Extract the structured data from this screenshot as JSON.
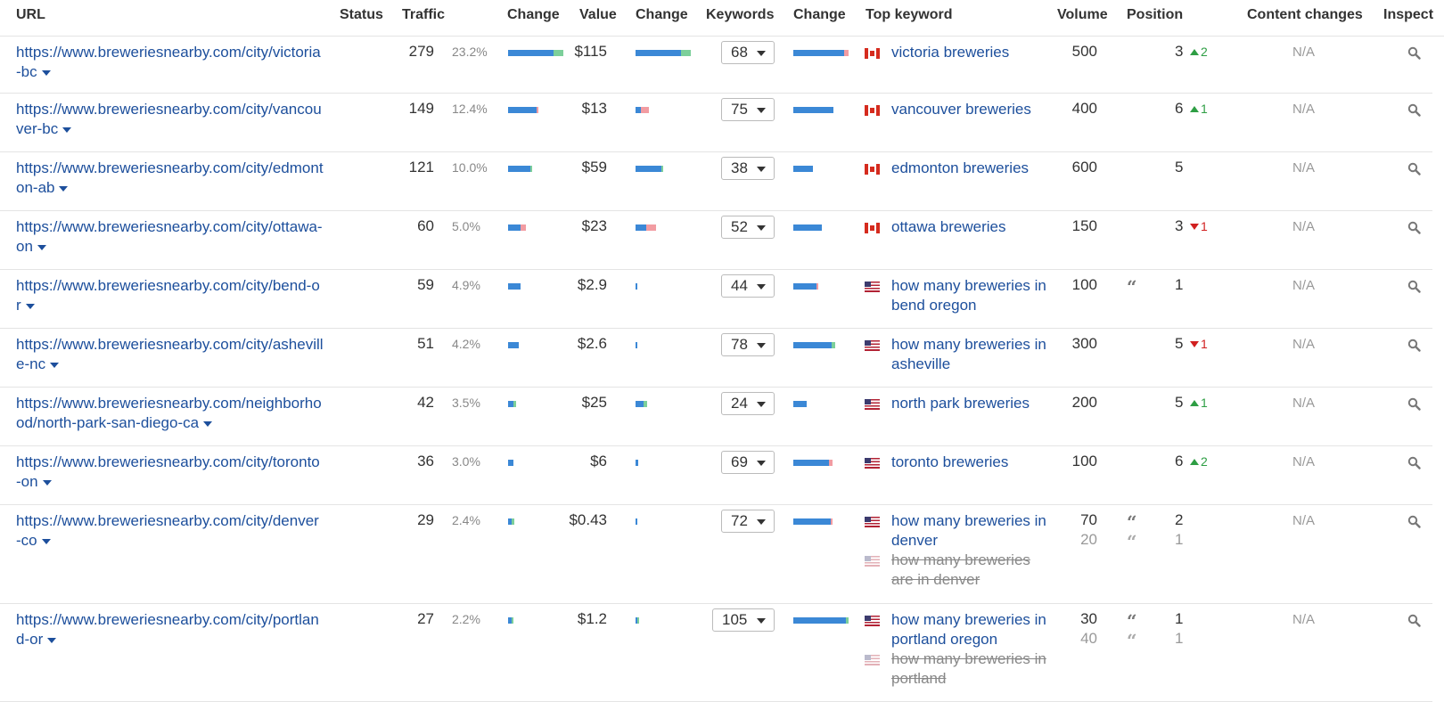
{
  "columns": [
    "URL",
    "Status",
    "Traffic",
    "Change",
    "Value",
    "Change",
    "Keywords",
    "Change",
    "Top keyword",
    "Volume",
    "Position",
    "Content changes",
    "Inspect"
  ],
  "colors": {
    "link": "#1d4f9c",
    "bar_blue": "#3b88d6",
    "bar_green": "#7ccf9a",
    "bar_red": "#f29ca2",
    "up": "#2e9e44",
    "down": "#d12020"
  },
  "rows": [
    {
      "url": "https://www.breweriesnearby.com/city/victoria-bc",
      "traffic": "279",
      "traffic_pct": "23.2%",
      "value": "$115",
      "keywords": "68",
      "traffic_change": {
        "blue": 0.82,
        "green": 0.18,
        "red": 0
      },
      "value_change": {
        "blue": 0.82,
        "green": 0.18,
        "red": 0
      },
      "keywords_change": {
        "blue": 0.92,
        "green": 0,
        "red": 0.08
      },
      "keyword_entries": [
        {
          "flag": "ca",
          "text": "victoria breweries",
          "struck": false,
          "volume": "500",
          "quote": false,
          "position": "3",
          "pos_change": "2",
          "pos_dir": "up"
        }
      ],
      "content_changes": "N/A"
    },
    {
      "url": "https://www.breweriesnearby.com/city/vancouver-bc",
      "traffic": "149",
      "traffic_pct": "12.4%",
      "value": "$13",
      "keywords": "75",
      "traffic_change": {
        "blue": 0.52,
        "green": 0,
        "red": 0.04
      },
      "value_change": {
        "blue": 0.1,
        "green": 0,
        "red": 0.15
      },
      "keywords_change": {
        "blue": 0.72,
        "green": 0,
        "red": 0
      },
      "keyword_entries": [
        {
          "flag": "ca",
          "text": "vancouver breweries",
          "struck": false,
          "volume": "400",
          "quote": false,
          "position": "6",
          "pos_change": "1",
          "pos_dir": "up"
        }
      ],
      "content_changes": "N/A"
    },
    {
      "url": "https://www.breweriesnearby.com/city/edmonton-ab",
      "traffic": "121",
      "traffic_pct": "10.0%",
      "value": "$59",
      "keywords": "38",
      "traffic_change": {
        "blue": 0.4,
        "green": 0.03,
        "red": 0
      },
      "value_change": {
        "blue": 0.47,
        "green": 0.03,
        "red": 0
      },
      "keywords_change": {
        "blue": 0.36,
        "green": 0,
        "red": 0
      },
      "keyword_entries": [
        {
          "flag": "ca",
          "text": "edmonton breweries",
          "struck": false,
          "volume": "600",
          "quote": false,
          "position": "5",
          "pos_change": "",
          "pos_dir": ""
        }
      ],
      "content_changes": "N/A"
    },
    {
      "url": "https://www.breweriesnearby.com/city/ottawa-on",
      "traffic": "60",
      "traffic_pct": "5.0%",
      "value": "$23",
      "keywords": "52",
      "traffic_change": {
        "blue": 0.22,
        "green": 0,
        "red": 0.1
      },
      "value_change": {
        "blue": 0.2,
        "green": 0,
        "red": 0.17
      },
      "keywords_change": {
        "blue": 0.52,
        "green": 0,
        "red": 0
      },
      "keyword_entries": [
        {
          "flag": "ca",
          "text": "ottawa breweries",
          "struck": false,
          "volume": "150",
          "quote": false,
          "position": "3",
          "pos_change": "1",
          "pos_dir": "down"
        }
      ],
      "content_changes": "N/A"
    },
    {
      "url": "https://www.breweriesnearby.com/city/bend-or",
      "traffic": "59",
      "traffic_pct": "4.9%",
      "value": "$2.9",
      "keywords": "44",
      "traffic_change": {
        "blue": 0.22,
        "green": 0,
        "red": 0
      },
      "value_change": {
        "blue": 0.03,
        "green": 0,
        "red": 0
      },
      "keywords_change": {
        "blue": 0.42,
        "green": 0,
        "red": 0.04
      },
      "keyword_entries": [
        {
          "flag": "us",
          "text": "how many breweries in bend oregon",
          "struck": false,
          "volume": "100",
          "quote": true,
          "position": "1",
          "pos_change": "",
          "pos_dir": ""
        }
      ],
      "content_changes": "N/A"
    },
    {
      "url": "https://www.breweriesnearby.com/city/asheville-nc",
      "traffic": "51",
      "traffic_pct": "4.2%",
      "value": "$2.6",
      "keywords": "78",
      "traffic_change": {
        "blue": 0.19,
        "green": 0,
        "red": 0
      },
      "value_change": {
        "blue": 0.03,
        "green": 0,
        "red": 0
      },
      "keywords_change": {
        "blue": 0.7,
        "green": 0.06,
        "red": 0
      },
      "keyword_entries": [
        {
          "flag": "us",
          "text": "how many breweries in asheville",
          "struck": false,
          "volume": "300",
          "quote": false,
          "position": "5",
          "pos_change": "1",
          "pos_dir": "down"
        }
      ],
      "content_changes": "N/A"
    },
    {
      "url": "https://www.breweriesnearby.com/neighborhood/north-park-san-diego-ca",
      "traffic": "42",
      "traffic_pct": "3.5%",
      "value": "$25",
      "keywords": "24",
      "traffic_change": {
        "blue": 0.1,
        "green": 0.05,
        "red": 0
      },
      "value_change": {
        "blue": 0.15,
        "green": 0.07,
        "red": 0
      },
      "keywords_change": {
        "blue": 0.24,
        "green": 0,
        "red": 0
      },
      "keyword_entries": [
        {
          "flag": "us",
          "text": "north park breweries",
          "struck": false,
          "volume": "200",
          "quote": false,
          "position": "5",
          "pos_change": "1",
          "pos_dir": "up"
        }
      ],
      "content_changes": "N/A"
    },
    {
      "url": "https://www.breweriesnearby.com/city/toronto-on",
      "traffic": "36",
      "traffic_pct": "3.0%",
      "value": "$6",
      "keywords": "69",
      "traffic_change": {
        "blue": 0.1,
        "green": 0,
        "red": 0
      },
      "value_change": {
        "blue": 0.05,
        "green": 0,
        "red": 0
      },
      "keywords_change": {
        "blue": 0.64,
        "green": 0,
        "red": 0.07
      },
      "keyword_entries": [
        {
          "flag": "us",
          "text": "toronto breweries",
          "struck": false,
          "volume": "100",
          "quote": false,
          "position": "6",
          "pos_change": "2",
          "pos_dir": "up"
        }
      ],
      "content_changes": "N/A"
    },
    {
      "url": "https://www.breweriesnearby.com/city/denver-co",
      "traffic": "29",
      "traffic_pct": "2.4%",
      "value": "$0.43",
      "keywords": "72",
      "traffic_change": {
        "blue": 0.06,
        "green": 0.05,
        "red": 0
      },
      "value_change": {
        "blue": 0.03,
        "green": 0,
        "red": 0
      },
      "keywords_change": {
        "blue": 0.68,
        "green": 0,
        "red": 0.03
      },
      "keyword_entries": [
        {
          "flag": "us",
          "text": "how many breweries in denver",
          "struck": false,
          "volume": "70",
          "quote": true,
          "position": "2",
          "pos_change": "",
          "pos_dir": ""
        },
        {
          "flag": "us",
          "text": "how many breweries are in denver",
          "struck": true,
          "volume": "20",
          "quote": true,
          "position": "1",
          "pos_change": "",
          "pos_dir": ""
        }
      ],
      "content_changes": "N/A"
    },
    {
      "url": "https://www.breweriesnearby.com/city/portland-or",
      "traffic": "27",
      "traffic_pct": "2.2%",
      "value": "$1.2",
      "keywords": "105",
      "traffic_change": {
        "blue": 0.06,
        "green": 0.03,
        "red": 0
      },
      "value_change": {
        "blue": 0.02,
        "green": 0.02,
        "red": 0
      },
      "keywords_change": {
        "blue": 0.95,
        "green": 0.05,
        "red": 0
      },
      "keyword_entries": [
        {
          "flag": "us",
          "text": "how many breweries in portland oregon",
          "struck": false,
          "volume": "30",
          "quote": true,
          "position": "1",
          "pos_change": "",
          "pos_dir": ""
        },
        {
          "flag": "us",
          "text": "how many breweries in portland",
          "struck": true,
          "volume": "40",
          "quote": true,
          "position": "1",
          "pos_change": "",
          "pos_dir": ""
        }
      ],
      "content_changes": "N/A"
    }
  ]
}
